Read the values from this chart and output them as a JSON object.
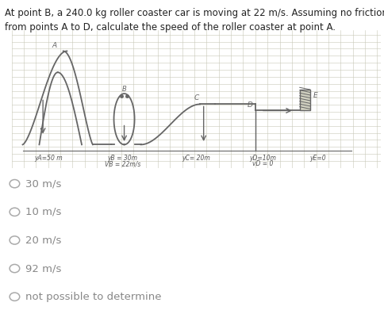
{
  "title_line1": "At point B, a 240.0 kg roller coaster car is moving at 22 m/s. Assuming no friction",
  "title_line2": "from points A to D, calculate the speed of the roller coaster at point A.",
  "diagram_bg": "#e8e8e0",
  "grid_color": "#c8c8b8",
  "track_color": "#666666",
  "options": [
    "30 m/s",
    "10 m/s",
    "20 m/s",
    "92 m/s",
    "not possible to determine"
  ],
  "label_A": "A",
  "label_B": "B",
  "label_C": "C",
  "label_D": "D",
  "label_E": "E",
  "ann_yA": "yA=50 m",
  "ann_yB": "yB = 30m",
  "ann_vB": "VB = 22m/s",
  "ann_yC": "yC= 20m",
  "ann_yD": "yD=10m",
  "ann_vD": "vD = 0",
  "ann_yE": "yE=0",
  "title_fontsize": 8.5,
  "option_fontsize": 9.5,
  "text_color": "#222222",
  "option_color": "#888888",
  "circle_color": "#aaaaaa"
}
